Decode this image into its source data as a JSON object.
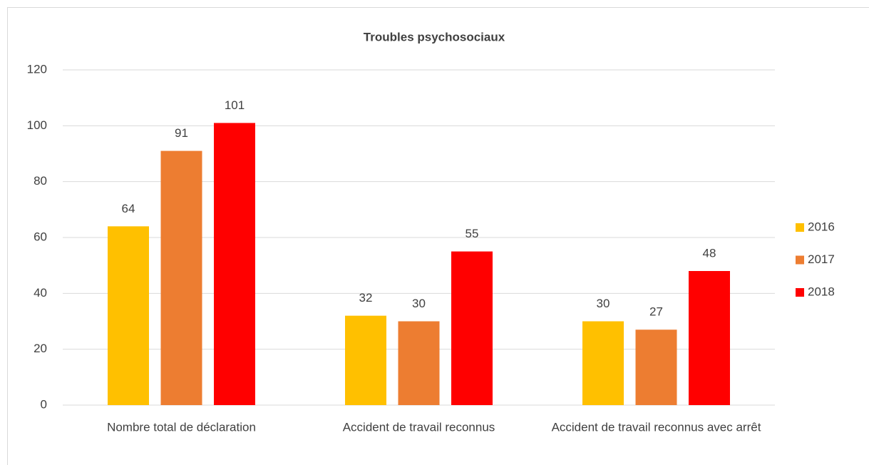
{
  "chart_data": {
    "type": "bar",
    "title": "Troubles psychosociaux",
    "categories": [
      "Nombre total de déclaration",
      "Accident de travail reconnus",
      "Accident de travail reconnus avec arrêt"
    ],
    "series": [
      {
        "name": "2016",
        "color": "#ffc000",
        "values": [
          64,
          32,
          30
        ]
      },
      {
        "name": "2017",
        "color": "#ed7d31",
        "values": [
          91,
          30,
          27
        ]
      },
      {
        "name": "2018",
        "color": "#ff0000",
        "values": [
          101,
          55,
          48
        ]
      }
    ],
    "ylim": [
      0,
      120
    ],
    "yticks": [
      0,
      20,
      40,
      60,
      80,
      100,
      120
    ],
    "grid": true,
    "legend": "right"
  }
}
